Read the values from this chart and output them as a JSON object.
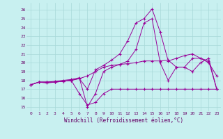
{
  "xlabel": "Windchill (Refroidissement éolien,°C)",
  "bg_color": "#c8f0f0",
  "grid_color": "#a8d8d8",
  "line_color": "#990099",
  "x_ticks": [
    0,
    1,
    2,
    3,
    4,
    5,
    6,
    7,
    8,
    9,
    10,
    11,
    12,
    13,
    14,
    15,
    16,
    17,
    18,
    19,
    20,
    21,
    22,
    23
  ],
  "y_ticks": [
    15,
    16,
    17,
    18,
    19,
    20,
    21,
    22,
    23,
    24,
    25,
    26
  ],
  "xlim": [
    -0.5,
    23.5
  ],
  "ylim": [
    14.5,
    26.8
  ],
  "series": [
    [
      17.5,
      17.8,
      17.8,
      17.8,
      17.9,
      18.0,
      18.2,
      17.0,
      19.2,
      19.7,
      20.3,
      21.0,
      22.5,
      24.5,
      25.0,
      26.1,
      23.5,
      20.2,
      20.5,
      20.8,
      21.0,
      20.5,
      20.0,
      18.5
    ],
    [
      17.5,
      17.8,
      17.8,
      17.9,
      18.0,
      18.1,
      18.3,
      15.0,
      16.5,
      19.0,
      19.5,
      19.8,
      20.2,
      21.5,
      24.5,
      25.0,
      20.0,
      18.0,
      19.5,
      19.5,
      19.0,
      20.0,
      20.5,
      17.0
    ],
    [
      17.5,
      17.8,
      17.7,
      17.8,
      17.9,
      18.0,
      16.5,
      15.2,
      15.5,
      16.5,
      17.0,
      17.0,
      17.0,
      17.0,
      17.0,
      17.0,
      17.0,
      17.0,
      17.0,
      17.0,
      17.0,
      17.0,
      17.0,
      17.0
    ],
    [
      17.5,
      17.8,
      17.8,
      17.8,
      17.9,
      18.0,
      18.2,
      18.5,
      19.0,
      19.5,
      19.7,
      19.8,
      19.9,
      20.0,
      20.2,
      20.2,
      20.2,
      20.3,
      19.5,
      19.5,
      20.5,
      20.5,
      20.2,
      17.0
    ]
  ]
}
